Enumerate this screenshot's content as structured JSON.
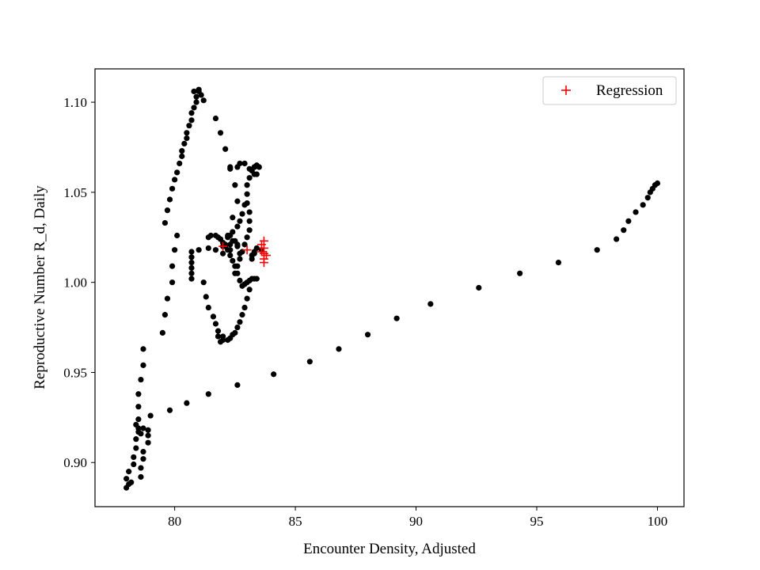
{
  "chart_data": {
    "type": "scatter",
    "xlabel": "Encounter Density, Adjusted",
    "ylabel": "Reproductive Number R_d, Daily",
    "xlim": [
      76.7,
      101.1
    ],
    "ylim": [
      0.8755,
      1.1185
    ],
    "xticks": [
      80,
      85,
      90,
      95,
      100
    ],
    "yticks": [
      0.9,
      0.95,
      1.0,
      1.05,
      1.1
    ],
    "xtick_labels": [
      "80",
      "85",
      "90",
      "95",
      "100"
    ],
    "ytick_labels": [
      "0.90",
      "0.95",
      "1.00",
      "1.05",
      "1.10"
    ],
    "grid": false,
    "legend": {
      "position": "top-right",
      "entries": [
        "Regression"
      ]
    },
    "colors": {
      "data": "#000000",
      "regression": "#ff0000"
    },
    "series": [
      {
        "marker": "dot",
        "color": "#000000",
        "points": [
          [
            78.1,
            0.888
          ],
          [
            78.0,
            0.891
          ],
          [
            78.1,
            0.895
          ],
          [
            78.0,
            0.886
          ],
          [
            78.2,
            0.889
          ],
          [
            78.3,
            0.899
          ],
          [
            78.3,
            0.903
          ],
          [
            78.4,
            0.908
          ],
          [
            78.4,
            0.913
          ],
          [
            78.5,
            0.919
          ],
          [
            78.5,
            0.924
          ],
          [
            78.5,
            0.931
          ],
          [
            78.5,
            0.938
          ],
          [
            78.6,
            0.946
          ],
          [
            78.7,
            0.954
          ],
          [
            78.7,
            0.963
          ],
          [
            78.4,
            0.921
          ],
          [
            78.5,
            0.917
          ],
          [
            78.6,
            0.916
          ],
          [
            78.7,
            0.919
          ],
          [
            78.9,
            0.918
          ],
          [
            78.9,
            0.915
          ],
          [
            78.9,
            0.911
          ],
          [
            78.7,
            0.906
          ],
          [
            78.7,
            0.902
          ],
          [
            78.6,
            0.897
          ],
          [
            78.6,
            0.892
          ],
          [
            79.0,
            0.926
          ],
          [
            79.8,
            0.929
          ],
          [
            80.5,
            0.933
          ],
          [
            81.4,
            0.938
          ],
          [
            82.6,
            0.943
          ],
          [
            84.1,
            0.949
          ],
          [
            85.6,
            0.956
          ],
          [
            86.8,
            0.963
          ],
          [
            88.0,
            0.971
          ],
          [
            89.2,
            0.98
          ],
          [
            90.6,
            0.988
          ],
          [
            92.6,
            0.997
          ],
          [
            94.3,
            1.005
          ],
          [
            95.9,
            1.011
          ],
          [
            97.5,
            1.018
          ],
          [
            98.3,
            1.024
          ],
          [
            98.6,
            1.029
          ],
          [
            98.8,
            1.034
          ],
          [
            99.1,
            1.039
          ],
          [
            99.4,
            1.043
          ],
          [
            99.6,
            1.047
          ],
          [
            99.7,
            1.05
          ],
          [
            99.8,
            1.052
          ],
          [
            99.9,
            1.054
          ],
          [
            100.0,
            1.055
          ],
          [
            79.5,
            0.972
          ],
          [
            79.6,
            0.982
          ],
          [
            79.7,
            0.991
          ],
          [
            79.9,
            1.0
          ],
          [
            79.9,
            1.009
          ],
          [
            80.0,
            1.018
          ],
          [
            80.1,
            1.026
          ],
          [
            79.6,
            1.033
          ],
          [
            79.7,
            1.04
          ],
          [
            79.8,
            1.046
          ],
          [
            79.9,
            1.052
          ],
          [
            80.0,
            1.057
          ],
          [
            80.1,
            1.061
          ],
          [
            80.2,
            1.066
          ],
          [
            80.3,
            1.07
          ],
          [
            80.3,
            1.073
          ],
          [
            80.4,
            1.077
          ],
          [
            80.5,
            1.08
          ],
          [
            80.5,
            1.083
          ],
          [
            80.6,
            1.087
          ],
          [
            80.7,
            1.09
          ],
          [
            80.7,
            1.094
          ],
          [
            80.8,
            1.097
          ],
          [
            80.9,
            1.1
          ],
          [
            80.9,
            1.103
          ],
          [
            80.8,
            1.106
          ],
          [
            81.0,
            1.106
          ],
          [
            81.0,
            1.107
          ],
          [
            81.1,
            1.104
          ],
          [
            81.2,
            1.101
          ],
          [
            81.7,
            1.091
          ],
          [
            81.9,
            1.083
          ],
          [
            82.1,
            1.074
          ],
          [
            82.3,
            1.064
          ],
          [
            82.5,
            1.054
          ],
          [
            82.6,
            1.045
          ],
          [
            82.4,
            1.036
          ],
          [
            82.2,
            1.026
          ],
          [
            82.1,
            1.021
          ],
          [
            82.0,
            1.016
          ],
          [
            81.7,
            1.018
          ],
          [
            81.4,
            1.019
          ],
          [
            81.0,
            1.018
          ],
          [
            80.7,
            1.017
          ],
          [
            80.7,
            1.014
          ],
          [
            80.7,
            1.011
          ],
          [
            80.7,
            1.008
          ],
          [
            80.7,
            1.005
          ],
          [
            80.7,
            1.002
          ],
          [
            81.2,
            1.0
          ],
          [
            81.3,
            0.992
          ],
          [
            81.4,
            0.986
          ],
          [
            81.6,
            0.981
          ],
          [
            81.7,
            0.977
          ],
          [
            81.8,
            0.973
          ],
          [
            81.8,
            0.97
          ],
          [
            81.9,
            0.967
          ],
          [
            82.0,
            0.968
          ],
          [
            82.0,
            0.97
          ],
          [
            81.4,
            1.025
          ],
          [
            81.5,
            1.026
          ],
          [
            81.7,
            1.026
          ],
          [
            81.8,
            1.025
          ],
          [
            81.9,
            1.024
          ],
          [
            82.0,
            1.022
          ],
          [
            82.1,
            1.02
          ],
          [
            82.2,
            1.018
          ],
          [
            82.3,
            1.015
          ],
          [
            82.4,
            1.012
          ],
          [
            82.5,
            1.009
          ],
          [
            82.6,
            1.005
          ],
          [
            82.7,
            1.001
          ],
          [
            82.8,
            0.998
          ],
          [
            82.9,
            0.999
          ],
          [
            83.0,
            1.0
          ],
          [
            83.1,
            1.001
          ],
          [
            83.2,
            1.002
          ],
          [
            83.3,
            1.002
          ],
          [
            83.4,
            1.002
          ],
          [
            83.1,
            0.996
          ],
          [
            83.0,
            0.991
          ],
          [
            82.9,
            0.986
          ],
          [
            82.8,
            0.982
          ],
          [
            82.7,
            0.978
          ],
          [
            82.6,
            0.975
          ],
          [
            82.5,
            0.972
          ],
          [
            82.4,
            0.971
          ],
          [
            82.3,
            0.969
          ],
          [
            82.2,
            0.968
          ],
          [
            82.5,
            1.005
          ],
          [
            82.6,
            1.009
          ],
          [
            82.7,
            1.013
          ],
          [
            82.8,
            1.017
          ],
          [
            82.9,
            1.021
          ],
          [
            83.0,
            1.025
          ],
          [
            83.1,
            1.029
          ],
          [
            83.1,
            1.034
          ],
          [
            83.1,
            1.039
          ],
          [
            83.0,
            1.044
          ],
          [
            83.0,
            1.049
          ],
          [
            83.0,
            1.054
          ],
          [
            83.1,
            1.058
          ],
          [
            83.2,
            1.062
          ],
          [
            83.3,
            1.064
          ],
          [
            83.4,
            1.065
          ],
          [
            83.5,
            1.064
          ],
          [
            83.3,
            1.06
          ],
          [
            82.9,
            1.066
          ],
          [
            82.7,
            1.066
          ],
          [
            82.6,
            1.064
          ],
          [
            82.3,
            1.063
          ],
          [
            83.1,
            1.063
          ],
          [
            83.3,
            1.064
          ],
          [
            83.4,
            1.06
          ],
          [
            82.9,
            1.043
          ],
          [
            82.8,
            1.038
          ],
          [
            82.7,
            1.034
          ],
          [
            82.6,
            1.031
          ],
          [
            82.4,
            1.028
          ],
          [
            82.3,
            1.026
          ],
          [
            82.5,
            1.023
          ],
          [
            82.6,
            1.02
          ],
          [
            82.7,
            1.016
          ],
          [
            83.3,
            1.016
          ],
          [
            83.2,
            1.013
          ],
          [
            83.2,
            1.015
          ],
          [
            83.3,
            1.017
          ],
          [
            83.6,
            1.018
          ],
          [
            83.4,
            1.019
          ],
          [
            82.0,
            1.02
          ],
          [
            82.2,
            1.025
          ],
          [
            82.3,
            1.021
          ],
          [
            82.6,
            1.021
          ],
          [
            82.3,
            1.018
          ],
          [
            82.4,
            1.023
          ]
        ]
      },
      {
        "name": "Regression",
        "marker": "plus",
        "color": "#ff0000",
        "points": [
          [
            82.0,
            1.02
          ],
          [
            83.0,
            1.018
          ],
          [
            83.6,
            1.021
          ],
          [
            83.7,
            1.023
          ],
          [
            83.7,
            1.019
          ],
          [
            83.7,
            1.016
          ],
          [
            83.7,
            1.013
          ],
          [
            83.6,
            1.017
          ],
          [
            83.8,
            1.015
          ],
          [
            83.7,
            1.011
          ]
        ]
      }
    ]
  }
}
